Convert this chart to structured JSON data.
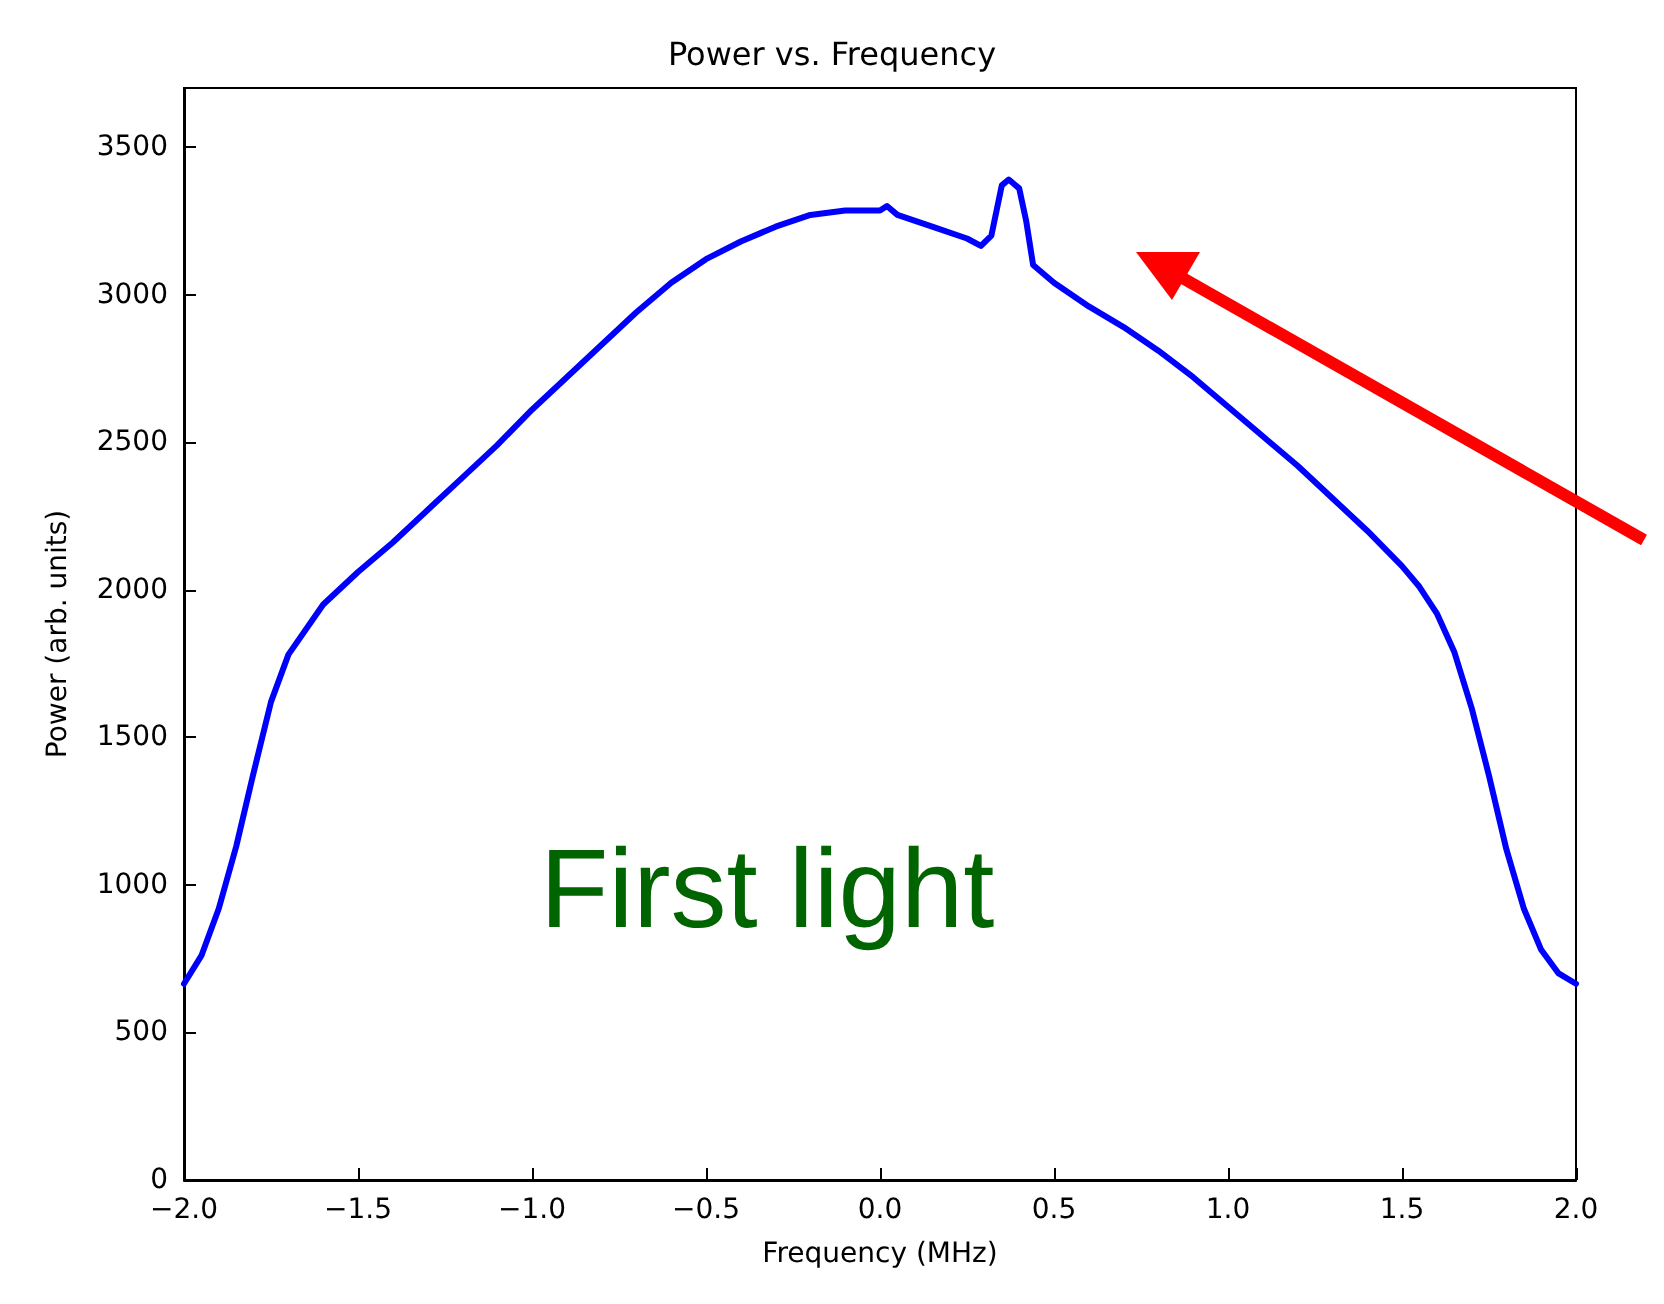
{
  "chart_data": {
    "type": "line",
    "title": "Power vs. Frequency",
    "xlabel": "Frequency (MHz)",
    "ylabel": "Power (arb. units)",
    "annotations": [
      "First light"
    ],
    "xlim": [
      -2.0,
      2.0
    ],
    "xticks": [
      {
        "value": -2,
        "label": "−2.0"
      },
      {
        "value": -1.5,
        "label": "−1.5"
      },
      {
        "value": -1,
        "label": "−1.0"
      },
      {
        "value": -0.5,
        "label": "−0.5"
      },
      {
        "value": 0,
        "label": "0.0"
      },
      {
        "value": 0.5,
        "label": "0.5"
      },
      {
        "value": 1,
        "label": "1.0"
      },
      {
        "value": 1.5,
        "label": "1.5"
      },
      {
        "value": 2,
        "label": "2.0"
      }
    ],
    "ylim": [
      0,
      3700
    ],
    "yticks": [
      0,
      500,
      1000,
      1500,
      2000,
      2500,
      3000,
      3500
    ],
    "marker": "none",
    "line_style": "solid",
    "series": [
      {
        "color": "#0000ff",
        "x": [
          -2.0,
          -1.95,
          -1.9,
          -1.85,
          -1.8,
          -1.75,
          -1.7,
          -1.6,
          -1.5,
          -1.4,
          -1.3,
          -1.2,
          -1.1,
          -1.0,
          -0.9,
          -0.8,
          -0.7,
          -0.6,
          -0.5,
          -0.4,
          -0.3,
          -0.2,
          -0.1,
          0.0,
          0.02,
          0.05,
          0.15,
          0.25,
          0.29,
          0.32,
          0.35,
          0.37,
          0.4,
          0.42,
          0.44,
          0.5,
          0.6,
          0.7,
          0.8,
          0.9,
          1.0,
          1.1,
          1.2,
          1.3,
          1.4,
          1.5,
          1.55,
          1.6,
          1.65,
          1.7,
          1.75,
          1.8,
          1.85,
          1.9,
          1.95,
          2.0
        ],
        "values": [
          665,
          760,
          920,
          1130,
          1380,
          1620,
          1780,
          1950,
          2060,
          2160,
          2270,
          2380,
          2490,
          2610,
          2720,
          2830,
          2940,
          3040,
          3120,
          3180,
          3230,
          3270,
          3285,
          3285,
          3300,
          3270,
          3230,
          3190,
          3165,
          3200,
          3370,
          3390,
          3360,
          3250,
          3100,
          3040,
          2960,
          2890,
          2810,
          2720,
          2620,
          2520,
          2420,
          2310,
          2200,
          2080,
          2010,
          1920,
          1790,
          1600,
          1370,
          1120,
          920,
          780,
          700,
          665
        ]
      }
    ]
  }
}
